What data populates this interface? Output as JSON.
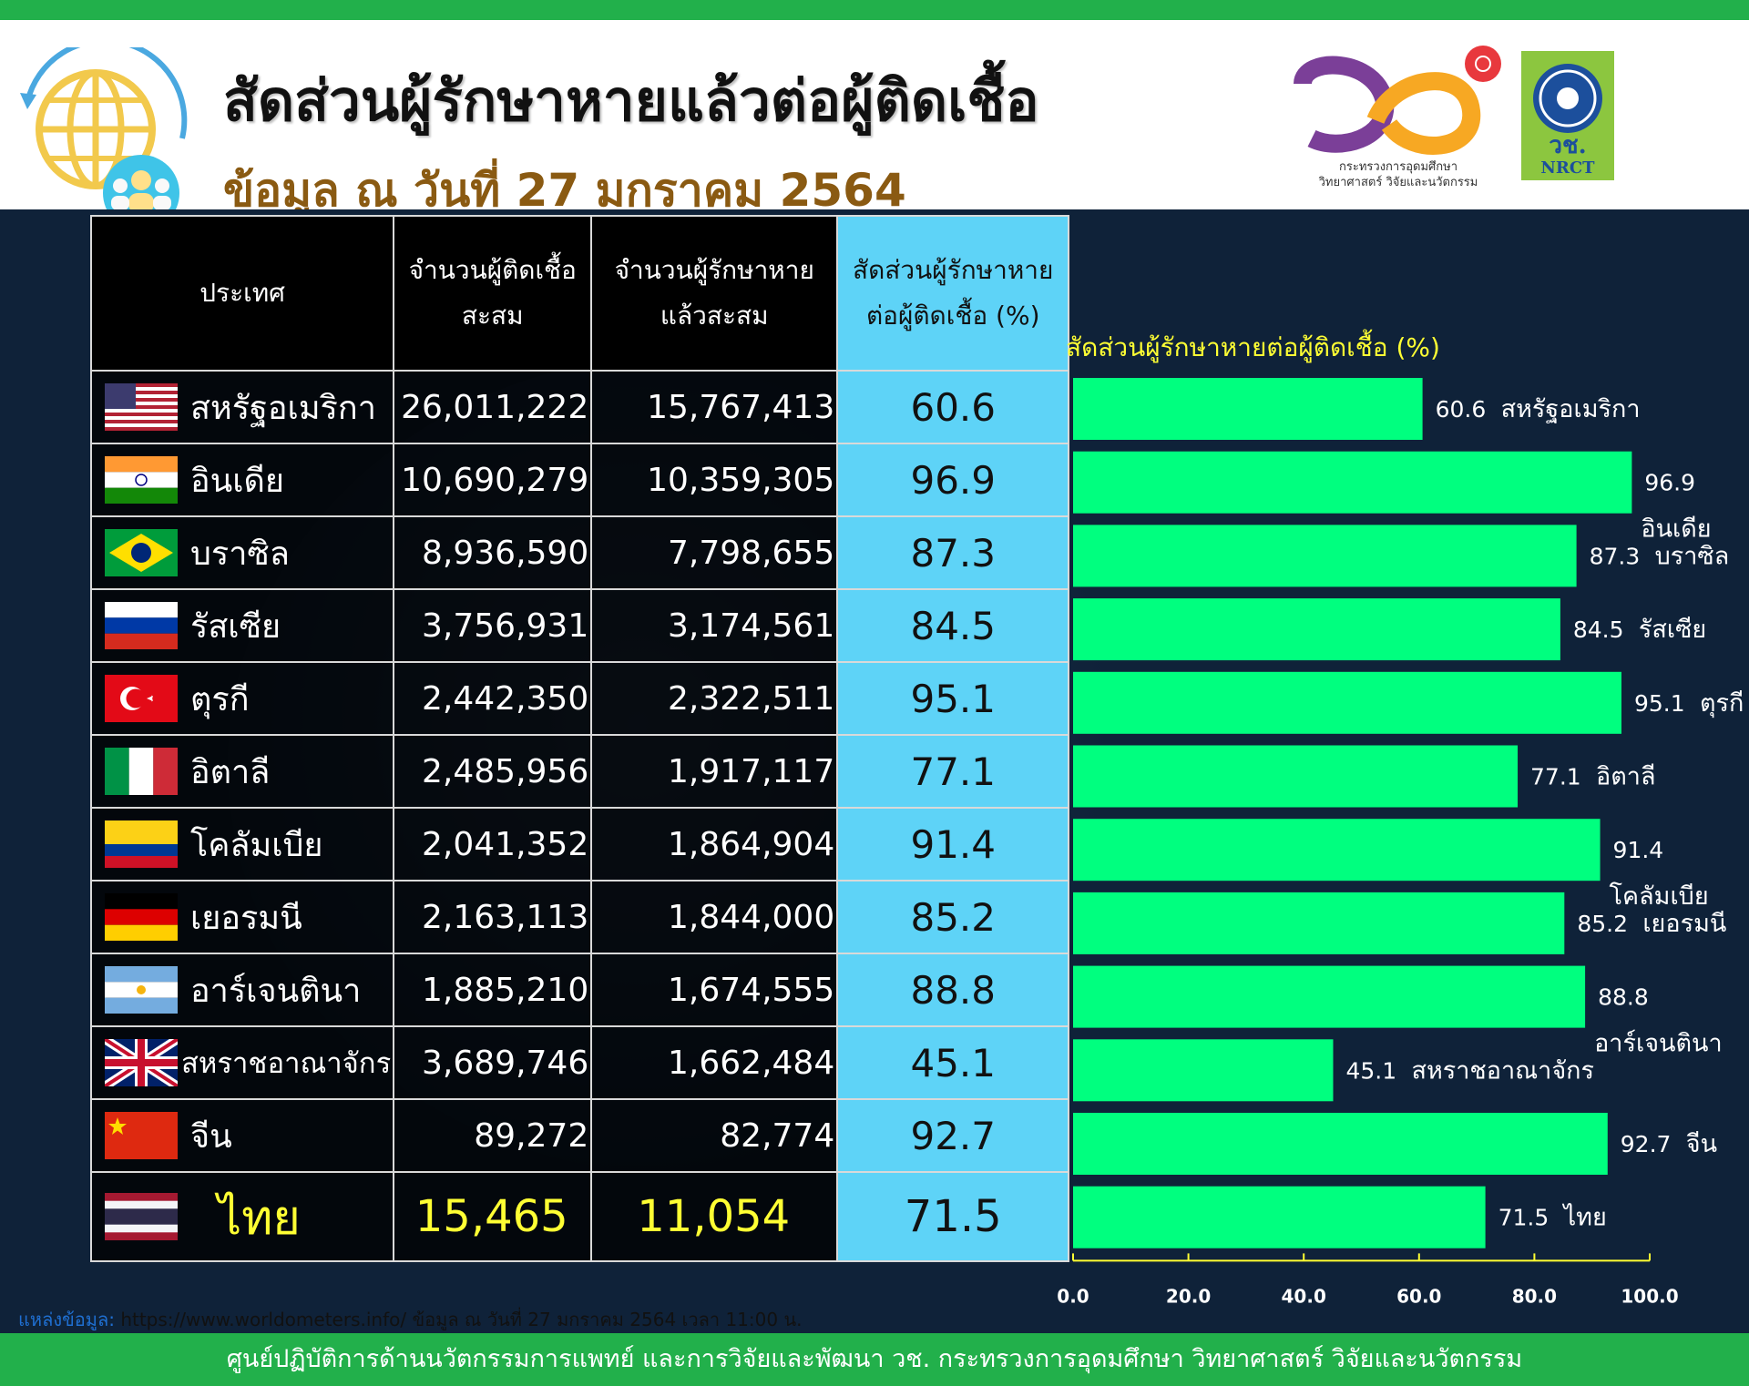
{
  "header": {
    "title": "สัดส่วนผู้รักษาหายแล้วต่อผู้ติดเชื้อ",
    "subtitle": "ข้อมูล ณ วันที่ 27 มกราคม 2564",
    "logo_ministry_text": "กระทรวงการอุดมศึกษา วิทยาศาสตร์ วิจัยและนวัตกรรม",
    "logo_nrct_thai": "วช.",
    "logo_nrct_en": "NRCT"
  },
  "table": {
    "headers": {
      "country": "ประเทศ",
      "infected_line1": "จำนวนผู้ติดเชื้อ",
      "infected_line2": "สะสม",
      "recovered_line1": "จำนวนผู้รักษาหาย",
      "recovered_line2": "แล้วสะสม",
      "ratio_line1": "สัดส่วนผู้รักษาหาย",
      "ratio_line2": "ต่อผู้ติดเชื้อ (%)"
    },
    "rows": [
      {
        "country": "สหรัฐอเมริกา",
        "flag": "usa-flag",
        "infected": "26,011,222",
        "recovered": "15,767,413",
        "ratio": "60.6"
      },
      {
        "country": "อินเดีย",
        "flag": "india-flag",
        "infected": "10,690,279",
        "recovered": "10,359,305",
        "ratio": "96.9"
      },
      {
        "country": "บราซิล",
        "flag": "brazil-flag",
        "infected": "8,936,590",
        "recovered": "7,798,655",
        "ratio": "87.3"
      },
      {
        "country": "รัสเซีย",
        "flag": "russia-flag",
        "infected": "3,756,931",
        "recovered": "3,174,561",
        "ratio": "84.5"
      },
      {
        "country": "ตุรกี",
        "flag": "turkey-flag",
        "infected": "2,442,350",
        "recovered": "2,322,511",
        "ratio": "95.1"
      },
      {
        "country": "อิตาลี",
        "flag": "italy-flag",
        "infected": "2,485,956",
        "recovered": "1,917,117",
        "ratio": "77.1"
      },
      {
        "country": "โคลัมเบีย",
        "flag": "colombia-flag",
        "infected": "2,041,352",
        "recovered": "1,864,904",
        "ratio": "91.4"
      },
      {
        "country": "เยอรมนี",
        "flag": "germany-flag",
        "infected": "2,163,113",
        "recovered": "1,844,000",
        "ratio": "85.2"
      },
      {
        "country": "อาร์เจนตินา",
        "flag": "argentina-flag",
        "infected": "1,885,210",
        "recovered": "1,674,555",
        "ratio": "88.8"
      },
      {
        "country": "สหราชอาณาจักร",
        "flag": "uk-flag",
        "infected": "3,689,746",
        "recovered": "1,662,484",
        "ratio": "45.1"
      },
      {
        "country": "จีน",
        "flag": "china-flag",
        "infected": "89,272",
        "recovered": "82,774",
        "ratio": "92.7"
      },
      {
        "country": "ไทย",
        "flag": "thailand-flag",
        "infected": "15,465",
        "recovered": "11,054",
        "ratio": "71.5"
      }
    ]
  },
  "chart_data": {
    "type": "bar",
    "orientation": "horizontal",
    "title": "สัดส่วนผู้รักษาหายต่อผู้ติดเชื้อ (%)",
    "categories": [
      "สหรัฐอเมริกา",
      "อินเดีย",
      "บราซิล",
      "รัสเซีย",
      "ตุรกี",
      "อิตาลี",
      "โคลัมเบีย",
      "เยอรมนี",
      "อาร์เจนตินา",
      "สหราชอาณาจักร",
      "จีน",
      "ไทย"
    ],
    "values": [
      60.6,
      96.9,
      87.3,
      84.5,
      95.1,
      77.1,
      91.4,
      85.2,
      88.8,
      45.1,
      92.7,
      71.5
    ],
    "value_labels": [
      "60.6",
      "96.9",
      "87.3",
      "84.5",
      "95.1",
      "77.1",
      "91.4",
      "85.2",
      "88.8",
      "45.1",
      "92.7",
      "71.5"
    ],
    "wrapped_labels": [
      false,
      true,
      false,
      false,
      false,
      false,
      true,
      false,
      true,
      false,
      false,
      false
    ],
    "xlim": [
      0,
      100
    ],
    "ticks": [
      "0.0",
      "20.0",
      "40.0",
      "60.0",
      "80.0",
      "100.0"
    ],
    "bar_color": "#00ff7f",
    "axis_color": "#ffff33",
    "label_color": "#ffffff",
    "grid": false,
    "legend": "none"
  },
  "source": {
    "label": "แหล่งข้อมูล:",
    "text": " https://www.worldometers.info/ ข้อมูล ณ วันที่ 27 มกราคม 2564 เวลา 11:00 น."
  },
  "footer": {
    "text": "ศูนย์ปฏิบัติการด้านนวัตกรรมการแพทย์ และการวิจัยและพัฒนา วช.   กระทรวงการอุดมศึกษา วิทยาศาสตร์ วิจัยและนวัตกรรม"
  }
}
